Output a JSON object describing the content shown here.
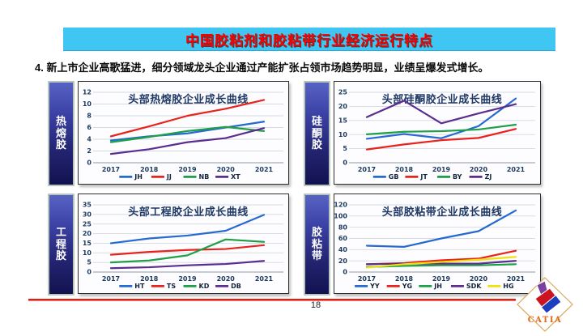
{
  "slide": {
    "title": "中国胶粘剂和胶粘带行业经济运行特点",
    "subtitle": "4. 新上市企业高歌猛进，细分领域龙头企业通过产能扩张占领市场趋势明显，业绩呈爆发式增长。",
    "page_number": "18",
    "logo_text": "CATIA"
  },
  "colors": {
    "title_bar_bg": "#3fc6f3",
    "title_text": "#fe0000",
    "panel_label_gradient_top": "#5763c4",
    "panel_label_gradient_bottom": "#121250",
    "chart_title": "#1f3864",
    "series_blue": "#2669d1",
    "series_red": "#e8231b",
    "series_green": "#1fa048",
    "series_purple": "#5b2d8f",
    "series_yellow": "#f0e10c",
    "footer_line": "#dd1f17"
  },
  "chart_data": [
    {
      "type": "line",
      "panel_label": "热熔胶",
      "title": "头部热熔胶企业成长曲线",
      "x": [
        "2017",
        "2018",
        "2019",
        "2020",
        "2021"
      ],
      "ylim": [
        0,
        12
      ],
      "yticks": [
        0,
        2,
        4,
        6,
        8,
        10,
        12
      ],
      "legend_position": "bottom",
      "grid": true,
      "series": [
        {
          "name": "JH",
          "color": "#2669d1",
          "values": [
            3.8,
            4.5,
            5.0,
            6.0,
            7.0
          ]
        },
        {
          "name": "JJ",
          "color": "#e8231b",
          "values": [
            4.5,
            6.2,
            8.0,
            9.2,
            10.7
          ]
        },
        {
          "name": "NB",
          "color": "#1fa048",
          "values": [
            3.5,
            4.4,
            5.4,
            6.1,
            5.4
          ]
        },
        {
          "name": "XT",
          "color": "#5b2d8f",
          "values": [
            1.5,
            2.3,
            3.5,
            4.2,
            5.9
          ]
        }
      ]
    },
    {
      "type": "line",
      "panel_label": "硅酮胶",
      "title": "头部硅酮胶企业成长曲线",
      "x": [
        "2017",
        "2018",
        "2019",
        "2020",
        "2021"
      ],
      "ylim": [
        0,
        25
      ],
      "yticks": [
        0,
        5,
        10,
        15,
        20,
        25
      ],
      "legend_position": "bottom",
      "grid": true,
      "series": [
        {
          "name": "GB",
          "color": "#2669d1",
          "values": [
            8.5,
            10.2,
            8.7,
            13.0,
            22.8
          ]
        },
        {
          "name": "JT",
          "color": "#e8231b",
          "values": [
            4.7,
            6.5,
            8.0,
            8.8,
            12.0
          ]
        },
        {
          "name": "BY",
          "color": "#1fa048",
          "values": [
            10.1,
            11.0,
            11.2,
            11.8,
            13.5
          ]
        },
        {
          "name": "ZJ",
          "color": "#5b2d8f",
          "values": [
            16.2,
            22.0,
            14.0,
            17.5,
            20.8
          ]
        }
      ]
    },
    {
      "type": "line",
      "panel_label": "工程胶",
      "title": "头部工程胶企业成长曲线",
      "x": [
        "2017",
        "2018",
        "2019",
        "2020",
        "2021"
      ],
      "ylim": [
        0,
        35
      ],
      "yticks": [
        0,
        5,
        10,
        15,
        20,
        25,
        30,
        35
      ],
      "legend_position": "bottom",
      "grid": true,
      "series": [
        {
          "name": "HT",
          "color": "#2669d1",
          "values": [
            15.0,
            17.5,
            19.0,
            21.5,
            29.8
          ]
        },
        {
          "name": "TS",
          "color": "#e8231b",
          "values": [
            9.0,
            10.5,
            11.5,
            12.0,
            14.0
          ]
        },
        {
          "name": "KD",
          "color": "#1fa048",
          "values": [
            5.0,
            6.0,
            8.7,
            17.0,
            15.7
          ]
        },
        {
          "name": "DB",
          "color": "#5b2d8f",
          "values": [
            2.0,
            2.5,
            3.5,
            4.2,
            5.8
          ]
        }
      ]
    },
    {
      "type": "line",
      "panel_label": "胶粘带",
      "title": "头部胶粘带企业成长曲线",
      "x": [
        "2017",
        "2018",
        "2019",
        "2020",
        "2021"
      ],
      "ylim": [
        0,
        120
      ],
      "yticks": [
        0,
        20,
        40,
        60,
        80,
        100,
        120
      ],
      "legend_position": "bottom",
      "grid": true,
      "series": [
        {
          "name": "YY",
          "color": "#2669d1",
          "values": [
            47,
            45,
            60,
            73,
            110
          ]
        },
        {
          "name": "YG",
          "color": "#e8231b",
          "values": [
            14,
            16,
            21,
            24,
            38
          ]
        },
        {
          "name": "JH",
          "color": "#1fa048",
          "values": [
            9,
            11,
            12,
            12,
            14
          ]
        },
        {
          "name": "SDK",
          "color": "#5b2d8f",
          "values": [
            14,
            15,
            15,
            15,
            20
          ]
        },
        {
          "name": "HG",
          "color": "#f0e10c",
          "values": [
            8,
            14,
            18,
            22,
            27
          ]
        }
      ]
    }
  ]
}
